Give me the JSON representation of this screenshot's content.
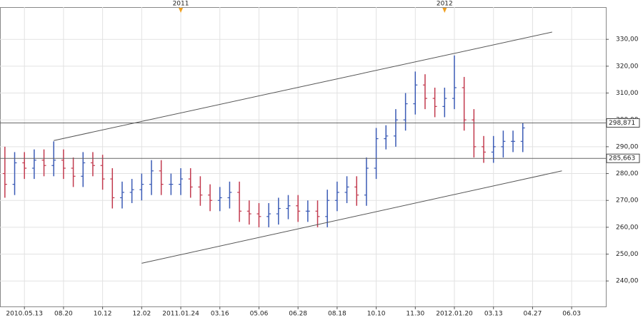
{
  "chart_data": {
    "type": "ohlc",
    "categories": [
      null,
      null,
      "2010.05.13",
      null,
      null,
      null,
      "08.20",
      null,
      null,
      null,
      "10.12",
      null,
      null,
      null,
      "12.02",
      null,
      null,
      null,
      "2011.01.24",
      null,
      null,
      null,
      "03.16",
      null,
      null,
      null,
      "05.06",
      null,
      null,
      null,
      "06.28",
      null,
      null,
      null,
      "08.18",
      null,
      null,
      null,
      "10.10",
      null,
      null,
      null,
      "11.30",
      null,
      null,
      null,
      "2012.01.20",
      null,
      null,
      null,
      "03.13",
      null,
      null,
      null,
      "04.27",
      null,
      null,
      null,
      "06.03",
      null,
      null,
      null
    ],
    "open": [
      280,
      276,
      284,
      282,
      285,
      283,
      285,
      282,
      279,
      284,
      283,
      278,
      271,
      273,
      274,
      276,
      281,
      276,
      276,
      278,
      275,
      272,
      270,
      271,
      273,
      266,
      265,
      264,
      265,
      267,
      268,
      266,
      266,
      264,
      270,
      273,
      275,
      272,
      282,
      293,
      294,
      300,
      306,
      313,
      308,
      305,
      308,
      312,
      300,
      290,
      288,
      290,
      292,
      292,
      null,
      null,
      null,
      null,
      null,
      null,
      null,
      null
    ],
    "high": [
      290,
      288,
      288,
      289,
      289,
      292,
      289,
      286,
      288,
      288,
      287,
      282,
      277,
      278,
      280,
      285,
      285,
      280,
      282,
      282,
      279,
      276,
      275,
      277,
      277,
      270,
      269,
      269,
      271,
      272,
      272,
      270,
      270,
      274,
      277,
      279,
      279,
      286,
      297,
      298,
      304,
      310,
      318,
      317,
      312,
      312,
      324,
      316,
      304,
      294,
      294,
      296,
      296,
      299,
      null,
      null,
      null,
      null,
      null,
      null,
      null,
      null
    ],
    "low": [
      271,
      272,
      278,
      278,
      279,
      279,
      278,
      275,
      275,
      279,
      274,
      267,
      267,
      269,
      270,
      272,
      272,
      272,
      272,
      271,
      268,
      266,
      266,
      267,
      262,
      261,
      260,
      260,
      261,
      263,
      262,
      262,
      260,
      260,
      266,
      269,
      268,
      268,
      278,
      289,
      290,
      296,
      302,
      304,
      301,
      301,
      304,
      296,
      286,
      284,
      284,
      286,
      288,
      288,
      null,
      null,
      null,
      null,
      null,
      null,
      null,
      null
    ],
    "close": [
      276,
      284,
      282,
      285,
      283,
      285,
      282,
      279,
      284,
      283,
      278,
      271,
      273,
      274,
      276,
      281,
      276,
      276,
      278,
      275,
      272,
      270,
      271,
      273,
      266,
      265,
      264,
      265,
      267,
      268,
      266,
      266,
      264,
      270,
      273,
      275,
      272,
      282,
      293,
      294,
      300,
      306,
      313,
      308,
      305,
      308,
      312,
      300,
      290,
      288,
      290,
      292,
      292,
      297,
      null,
      null,
      null,
      null,
      null,
      null,
      null,
      null
    ],
    "up_color": "#3b5bb5",
    "down_color": "#c23a4e",
    "ylim": [
      230.5,
      342
    ],
    "yticks": [
      {
        "value": 240,
        "label": "240,00"
      },
      {
        "value": 250,
        "label": "250,00"
      },
      {
        "value": 260,
        "label": "260,00"
      },
      {
        "value": 270,
        "label": "270,00"
      },
      {
        "value": 280,
        "label": "280,00"
      },
      {
        "value": 290,
        "label": "290,00"
      },
      {
        "value": 300,
        "label": "300,00"
      },
      {
        "value": 310,
        "label": "310,00"
      },
      {
        "value": 320,
        "label": "320,00"
      },
      {
        "value": 330,
        "label": "330,00"
      }
    ],
    "grid": true,
    "price_lines": [
      {
        "value": 298.871,
        "label": "298,871"
      },
      {
        "value": 285.663,
        "label": "285,663"
      }
    ],
    "trendlines": [
      {
        "x": [
          5,
          56
        ],
        "y": [
          292.3,
          332.7
        ]
      },
      {
        "x": [
          14,
          57
        ],
        "y": [
          246.6,
          281
        ]
      }
    ],
    "year_markers": [
      {
        "label": "2011",
        "x": 18
      },
      {
        "label": "2012",
        "x": 45
      }
    ]
  }
}
